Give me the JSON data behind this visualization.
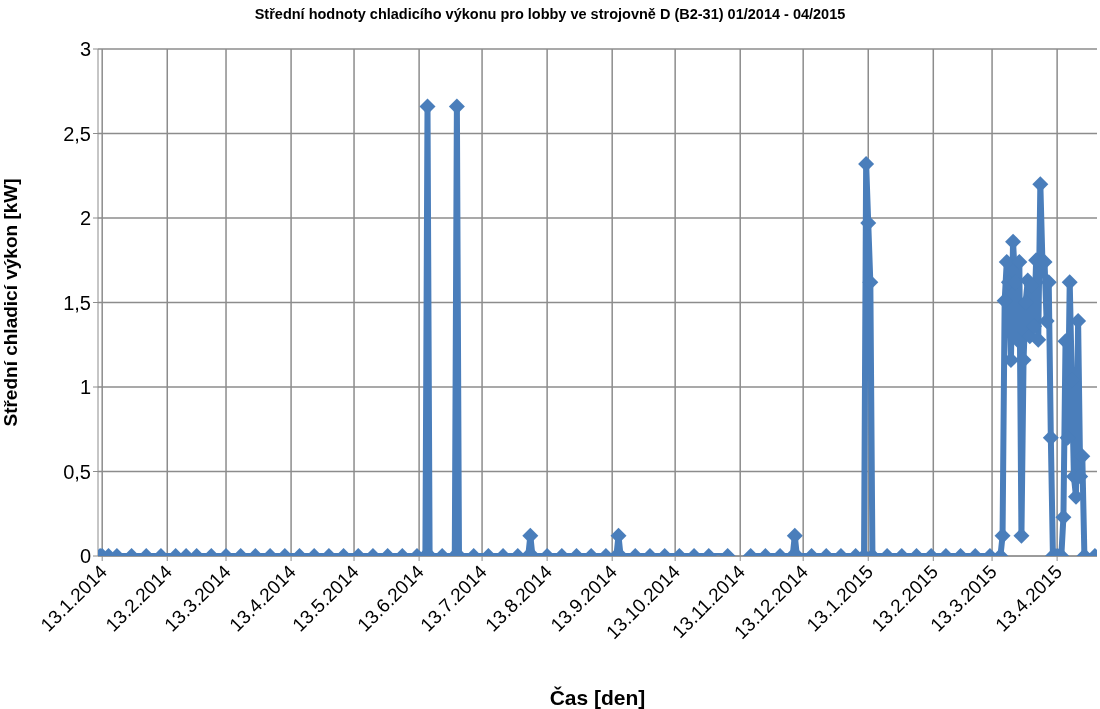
{
  "chart_data": {
    "type": "line",
    "title": "Střední hodnoty chladicího výkonu pro lobby ve strojovně D (B2-31) 01/2014 - 04/2015",
    "xlabel": "Čas [den]",
    "ylabel": "Střední chladicí výkon [kW]",
    "series": [
      {
        "color": "#4a7ebb",
        "x": [
          "2014-01-12",
          "2014-01-13",
          "2014-01-16",
          "2014-01-20",
          "2014-01-27",
          "2014-02-03",
          "2014-02-10",
          "2014-02-17",
          "2014-02-22",
          "2014-02-24",
          "2014-02-27",
          "2014-03-06",
          "2014-03-13",
          "2014-03-20",
          "2014-03-27",
          "2014-04-03",
          "2014-04-10",
          "2014-04-17",
          "2014-04-24",
          "2014-05-01",
          "2014-05-08",
          "2014-05-15",
          "2014-05-22",
          "2014-05-29",
          "2014-06-05",
          "2014-06-12",
          "2014-06-16",
          "2014-06-17",
          "2014-06-18",
          "2014-06-24",
          "2014-06-30",
          "2014-07-01",
          "2014-07-02",
          "2014-07-09",
          "2014-07-16",
          "2014-07-23",
          "2014-07-30",
          "2014-08-04",
          "2014-08-05",
          "2014-08-06",
          "2014-08-13",
          "2014-08-20",
          "2014-08-27",
          "2014-09-03",
          "2014-09-10",
          "2014-09-15",
          "2014-09-16",
          "2014-09-17",
          "2014-09-24",
          "2014-10-01",
          "2014-10-08",
          "2014-10-15",
          "2014-10-22",
          "2014-10-29",
          "2014-11-07",
          "2014-11-12",
          "2014-11-18",
          "2014-11-25",
          "2014-12-02",
          "2014-12-08",
          "2014-12-09",
          "2014-12-10",
          "2014-12-17",
          "2014-12-24",
          "2014-12-31",
          "2015-01-07",
          "2015-01-11",
          "2015-01-12",
          "2015-01-13",
          "2015-01-14",
          "2015-01-15",
          "2015-01-22",
          "2015-01-29",
          "2015-02-05",
          "2015-02-12",
          "2015-02-19",
          "2015-02-26",
          "2015-03-05",
          "2015-03-12",
          "2015-03-17",
          "2015-03-18",
          "2015-03-19",
          "2015-03-20",
          "2015-03-21",
          "2015-03-22",
          "2015-03-23",
          "2015-03-24",
          "2015-03-25",
          "2015-03-26",
          "2015-03-27",
          "2015-03-28",
          "2015-03-29",
          "2015-03-30",
          "2015-03-31",
          "2015-04-01",
          "2015-04-02",
          "2015-04-03",
          "2015-04-04",
          "2015-04-05",
          "2015-04-06",
          "2015-04-07",
          "2015-04-08",
          "2015-04-09",
          "2015-04-10",
          "2015-04-11",
          "2015-04-12",
          "2015-04-13",
          "2015-04-14",
          "2015-04-15",
          "2015-04-16",
          "2015-04-17",
          "2015-04-18",
          "2015-04-19",
          "2015-04-20",
          "2015-04-21",
          "2015-04-22",
          "2015-04-23",
          "2015-04-24",
          "2015-04-25",
          "2015-04-26",
          "2015-05-01"
        ],
        "values": [
          0,
          0,
          0,
          0,
          0,
          0,
          0,
          0,
          0,
          null,
          0,
          0,
          0,
          0,
          0,
          0,
          0,
          0,
          0,
          0,
          0,
          0,
          0,
          0,
          0,
          0,
          0,
          2.66,
          0,
          0,
          0,
          2.66,
          0,
          0,
          0,
          0,
          0,
          0,
          0.12,
          0,
          0,
          0,
          0,
          0,
          0,
          0,
          0.12,
          0,
          0,
          0,
          0,
          0,
          0,
          0,
          0,
          null,
          0,
          0,
          0,
          0,
          0.12,
          0,
          0,
          0,
          0,
          0,
          0,
          2.32,
          1.97,
          1.62,
          0,
          0,
          0,
          0,
          0,
          0,
          0,
          0,
          0,
          0,
          0.12,
          1.51,
          1.74,
          1.62,
          1.16,
          1.86,
          1.62,
          1.28,
          1.74,
          0.12,
          1.16,
          1.5,
          1.63,
          1.3,
          1.6,
          1.36,
          1.75,
          1.28,
          2.2,
          1.74,
          1.74,
          1.39,
          1.62,
          0.7,
          0,
          0,
          0,
          0,
          0,
          0.23,
          1.27,
          0.7,
          1.62,
          1.04,
          0.47,
          0.35,
          1.39,
          0.47,
          0.59,
          0,
          0
        ]
      }
    ],
    "xlim": [
      "2014-01-11",
      "2015-05-02"
    ],
    "xticks": [
      {
        "value": "2014-01-13",
        "label": "13.1.2014"
      },
      {
        "value": "2014-02-13",
        "label": "13.2.2014"
      },
      {
        "value": "2014-03-13",
        "label": "13.3.2014"
      },
      {
        "value": "2014-04-13",
        "label": "13.4.2014"
      },
      {
        "value": "2014-05-13",
        "label": "13.5.2014"
      },
      {
        "value": "2014-06-13",
        "label": "13.6.2014"
      },
      {
        "value": "2014-07-13",
        "label": "13.7.2014"
      },
      {
        "value": "2014-08-13",
        "label": "13.8.2014"
      },
      {
        "value": "2014-09-13",
        "label": "13.9.2014"
      },
      {
        "value": "2014-10-13",
        "label": "13.10.2014"
      },
      {
        "value": "2014-11-13",
        "label": "13.11.2014"
      },
      {
        "value": "2014-12-13",
        "label": "13.12.2014"
      },
      {
        "value": "2015-01-13",
        "label": "13.1.2015"
      },
      {
        "value": "2015-02-13",
        "label": "13.2.2015"
      },
      {
        "value": "2015-03-13",
        "label": "13.3.2015"
      },
      {
        "value": "2015-04-13",
        "label": "13.4.2015"
      }
    ],
    "ylim": [
      0,
      3
    ],
    "yticks": [
      0,
      {
        "value": 0.5,
        "label": "0,5"
      },
      1,
      {
        "value": 1.5,
        "label": "1,5"
      },
      2,
      {
        "value": 2.5,
        "label": "2,5"
      },
      3
    ],
    "grid": true,
    "marker": "diamond",
    "line_style": "solid",
    "legend": false
  }
}
